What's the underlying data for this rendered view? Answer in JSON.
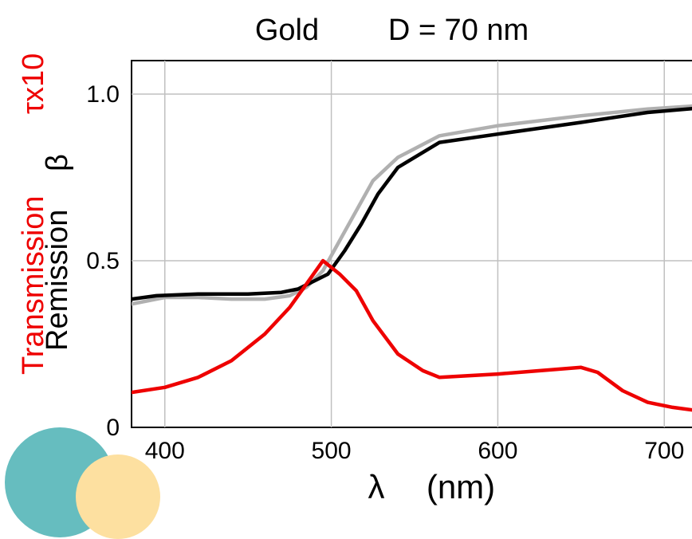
{
  "chart_data": {
    "type": "line",
    "title_left": "Gold",
    "title_right": "D = 70 nm",
    "xlabel_symbol": "λ",
    "xlabel_unit": "(nm)",
    "ylabel_red_word": "Transmission",
    "ylabel_red_symbol": "τx10",
    "ylabel_black_word": "Remission",
    "ylabel_black_symbol": "β",
    "xlim": [
      380,
      720
    ],
    "ylim": [
      0,
      1.1
    ],
    "grid": true,
    "x_ticks": [
      {
        "value": 400,
        "label": "400"
      },
      {
        "value": 500,
        "label": "500"
      },
      {
        "value": 600,
        "label": "600"
      },
      {
        "value": 700,
        "label": "700"
      }
    ],
    "y_ticks": [
      {
        "value": 0,
        "label": "0"
      },
      {
        "value": 0.5,
        "label": "0.5"
      },
      {
        "value": 1.0,
        "label": "1.0"
      }
    ],
    "series": [
      {
        "color": "#b0b0b0",
        "points": [
          [
            380,
            0.37
          ],
          [
            400,
            0.39
          ],
          [
            420,
            0.39
          ],
          [
            440,
            0.385
          ],
          [
            460,
            0.385
          ],
          [
            475,
            0.395
          ],
          [
            485,
            0.42
          ],
          [
            495,
            0.47
          ],
          [
            505,
            0.56
          ],
          [
            515,
            0.65
          ],
          [
            525,
            0.74
          ],
          [
            540,
            0.81
          ],
          [
            565,
            0.875
          ],
          [
            600,
            0.905
          ],
          [
            650,
            0.935
          ],
          [
            690,
            0.955
          ],
          [
            720,
            0.965
          ]
        ]
      },
      {
        "color": "#000000",
        "points": [
          [
            380,
            0.385
          ],
          [
            395,
            0.395
          ],
          [
            420,
            0.4
          ],
          [
            450,
            0.4
          ],
          [
            470,
            0.405
          ],
          [
            480,
            0.415
          ],
          [
            490,
            0.44
          ],
          [
            498,
            0.46
          ],
          [
            508,
            0.53
          ],
          [
            518,
            0.61
          ],
          [
            528,
            0.7
          ],
          [
            540,
            0.78
          ],
          [
            565,
            0.855
          ],
          [
            600,
            0.88
          ],
          [
            650,
            0.915
          ],
          [
            690,
            0.945
          ],
          [
            720,
            0.958
          ]
        ]
      },
      {
        "color": "#ee0000",
        "points": [
          [
            380,
            0.105
          ],
          [
            400,
            0.12
          ],
          [
            420,
            0.15
          ],
          [
            440,
            0.2
          ],
          [
            460,
            0.28
          ],
          [
            475,
            0.36
          ],
          [
            485,
            0.43
          ],
          [
            495,
            0.5
          ],
          [
            505,
            0.46
          ],
          [
            515,
            0.41
          ],
          [
            525,
            0.32
          ],
          [
            540,
            0.22
          ],
          [
            555,
            0.17
          ],
          [
            565,
            0.15
          ],
          [
            600,
            0.16
          ],
          [
            650,
            0.18
          ],
          [
            660,
            0.165
          ],
          [
            675,
            0.11
          ],
          [
            690,
            0.075
          ],
          [
            705,
            0.06
          ],
          [
            720,
            0.05
          ]
        ]
      }
    ]
  },
  "logo": {
    "teal_color": "#66bdbf",
    "yellow_color": "#fde0a0"
  }
}
